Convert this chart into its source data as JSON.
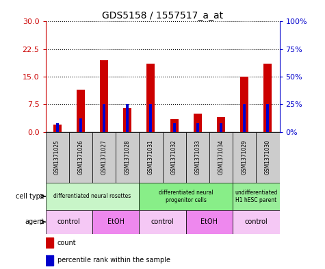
{
  "title": "GDS5158 / 1557517_a_at",
  "samples": [
    "GSM1371025",
    "GSM1371026",
    "GSM1371027",
    "GSM1371028",
    "GSM1371031",
    "GSM1371032",
    "GSM1371033",
    "GSM1371034",
    "GSM1371029",
    "GSM1371030"
  ],
  "counts": [
    2.0,
    11.5,
    19.5,
    6.5,
    18.5,
    3.5,
    5.0,
    4.0,
    15.0,
    18.5
  ],
  "percentiles": [
    8,
    12,
    25,
    25,
    25,
    8,
    8,
    8,
    25,
    25
  ],
  "ylim_left": [
    0,
    30
  ],
  "ylim_right": [
    0,
    100
  ],
  "yticks_left": [
    0,
    7.5,
    15,
    22.5,
    30
  ],
  "yticks_right": [
    0,
    25,
    50,
    75,
    100
  ],
  "cell_type_groups": [
    {
      "label": "differentiated neural rosettes",
      "start": 0,
      "end": 4,
      "color": "#c8f5c8"
    },
    {
      "label": "differentiated neural\nprogenitor cells",
      "start": 4,
      "end": 8,
      "color": "#88ee88"
    },
    {
      "label": "undifferentiated\nH1 hESC parent",
      "start": 8,
      "end": 10,
      "color": "#99ee99"
    }
  ],
  "agent_groups": [
    {
      "label": "control",
      "start": 0,
      "end": 2,
      "color": "#f5c8f5"
    },
    {
      "label": "EtOH",
      "start": 2,
      "end": 4,
      "color": "#ee88ee"
    },
    {
      "label": "control",
      "start": 4,
      "end": 6,
      "color": "#f5c8f5"
    },
    {
      "label": "EtOH",
      "start": 6,
      "end": 8,
      "color": "#ee88ee"
    },
    {
      "label": "control",
      "start": 8,
      "end": 10,
      "color": "#f5c8f5"
    }
  ],
  "bar_color": "#cc0000",
  "percentile_color": "#0000cc",
  "sample_row_color": "#cccccc",
  "left_axis_color": "#cc0000",
  "right_axis_color": "#0000cc",
  "bar_width": 0.35,
  "pct_bar_width": 0.12
}
